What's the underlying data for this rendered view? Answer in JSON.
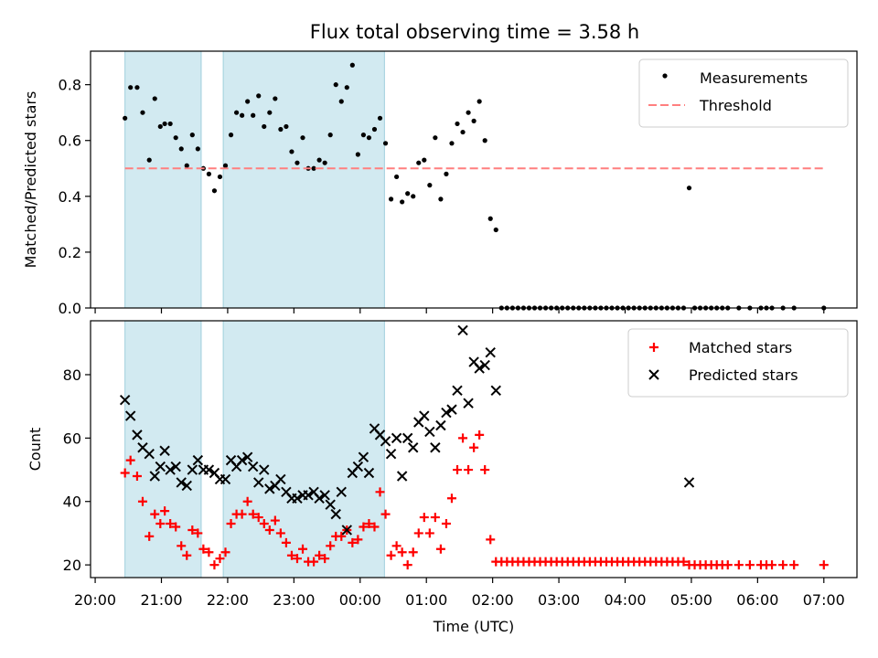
{
  "title": "Flux total observing time = 3.58 h",
  "chart_data": [
    {
      "type": "scatter",
      "ylabel": "Matched/Predicted stars",
      "xlabel": "",
      "ylim": [
        0,
        0.92
      ],
      "yticks": [
        "0.0",
        "0.2",
        "0.4",
        "0.6",
        "0.8"
      ],
      "legend_position": "top-right",
      "shaded_intervals": [
        [
          "20:27",
          "21:36"
        ],
        [
          "21:56",
          "00:22"
        ]
      ],
      "series": [
        {
          "name": "Measurements",
          "marker": "dot",
          "color": "#000000",
          "x": [
            "20:27",
            "20:32",
            "20:38",
            "20:43",
            "20:49",
            "20:54",
            "20:59",
            "21:03",
            "21:08",
            "21:13",
            "21:18",
            "21:23",
            "21:28",
            "21:33",
            "21:38",
            "21:43",
            "21:48",
            "21:53",
            "21:58",
            "22:03",
            "22:08",
            "22:13",
            "22:18",
            "22:23",
            "22:28",
            "22:33",
            "22:38",
            "22:43",
            "22:48",
            "22:53",
            "22:58",
            "23:03",
            "23:08",
            "23:13",
            "23:18",
            "23:23",
            "23:28",
            "23:33",
            "23:38",
            "23:43",
            "23:48",
            "23:53",
            "23:58",
            "00:03",
            "00:08",
            "00:13",
            "00:18",
            "00:23",
            "00:28",
            "00:33",
            "00:38",
            "00:43",
            "00:48",
            "00:53",
            "00:58",
            "01:03",
            "01:08",
            "01:13",
            "01:18",
            "01:23",
            "01:28",
            "01:33",
            "01:38",
            "01:43",
            "01:48",
            "01:53",
            "01:58",
            "02:03",
            "02:08",
            "02:13",
            "02:18",
            "02:23",
            "02:28",
            "02:33",
            "02:38",
            "02:43",
            "02:48",
            "02:53",
            "02:58",
            "03:03",
            "03:08",
            "03:13",
            "03:18",
            "03:23",
            "03:28",
            "03:33",
            "03:38",
            "03:43",
            "03:48",
            "03:53",
            "03:58",
            "04:03",
            "04:08",
            "04:13",
            "04:18",
            "04:23",
            "04:28",
            "04:33",
            "04:38",
            "04:43",
            "04:48",
            "04:53",
            "04:58",
            "05:03",
            "05:08",
            "05:13",
            "05:18",
            "05:23",
            "05:28",
            "05:33",
            "05:43",
            "05:53",
            "06:03",
            "06:08",
            "06:13",
            "06:23",
            "06:33",
            "07:00"
          ],
          "y": [
            0.68,
            0.79,
            0.79,
            0.7,
            0.53,
            0.75,
            0.65,
            0.66,
            0.66,
            0.61,
            0.57,
            0.51,
            0.62,
            0.57,
            0.5,
            0.48,
            0.42,
            0.47,
            0.51,
            0.62,
            0.7,
            0.69,
            0.74,
            0.69,
            0.76,
            0.65,
            0.7,
            0.75,
            0.64,
            0.65,
            0.56,
            0.52,
            0.61,
            0.5,
            0.5,
            0.53,
            0.52,
            0.62,
            0.8,
            0.74,
            0.79,
            0.87,
            0.55,
            0.62,
            0.61,
            0.64,
            0.68,
            0.59,
            0.39,
            0.47,
            0.38,
            0.41,
            0.4,
            0.52,
            0.53,
            0.44,
            0.61,
            0.39,
            0.48,
            0.59,
            0.66,
            0.63,
            0.7,
            0.67,
            0.74,
            0.6,
            0.32,
            0.28,
            0.0,
            0.0,
            0.0,
            0.0,
            0.0,
            0.0,
            0.0,
            0.0,
            0.0,
            0.0,
            0.0,
            0.0,
            0.0,
            0.0,
            0.0,
            0.0,
            0.0,
            0.0,
            0.0,
            0.0,
            0.0,
            0.0,
            0.0,
            0.0,
            0.0,
            0.0,
            0.0,
            0.0,
            0.0,
            0.0,
            0.0,
            0.0,
            0.0,
            0.0,
            0.43,
            0.0,
            0.0,
            0.0,
            0.0,
            0.0,
            0.0,
            0.0,
            0.0,
            0.0,
            0.0,
            0.0,
            0.0,
            0.0,
            0.0,
            0.0
          ]
        },
        {
          "name": "Threshold",
          "marker": "dashed-line",
          "color": "#ff7f7f",
          "x": [
            "20:27",
            "07:00"
          ],
          "y": [
            0.5,
            0.5
          ]
        }
      ]
    },
    {
      "type": "scatter",
      "ylabel": "Count",
      "xlabel": "Time (UTC)",
      "ylim": [
        16,
        97
      ],
      "yticks": [
        "20",
        "40",
        "60",
        "80"
      ],
      "xticks": [
        "20:00",
        "21:00",
        "22:00",
        "23:00",
        "00:00",
        "01:00",
        "02:00",
        "03:00",
        "04:00",
        "05:00",
        "06:00",
        "07:00"
      ],
      "legend_position": "top-right",
      "shaded_intervals": [
        [
          "20:27",
          "21:36"
        ],
        [
          "21:56",
          "00:22"
        ]
      ],
      "series": [
        {
          "name": "Matched stars",
          "marker": "plus",
          "color": "#ff0000",
          "x": [
            "20:27",
            "20:32",
            "20:38",
            "20:43",
            "20:49",
            "20:54",
            "20:59",
            "21:03",
            "21:08",
            "21:13",
            "21:18",
            "21:23",
            "21:28",
            "21:33",
            "21:38",
            "21:43",
            "21:48",
            "21:53",
            "21:58",
            "22:03",
            "22:08",
            "22:13",
            "22:18",
            "22:23",
            "22:28",
            "22:33",
            "22:38",
            "22:43",
            "22:48",
            "22:53",
            "22:58",
            "23:03",
            "23:08",
            "23:13",
            "23:18",
            "23:23",
            "23:28",
            "23:33",
            "23:38",
            "23:43",
            "23:48",
            "23:53",
            "23:58",
            "00:03",
            "00:08",
            "00:13",
            "00:18",
            "00:23",
            "00:28",
            "00:33",
            "00:38",
            "00:43",
            "00:48",
            "00:53",
            "00:58",
            "01:03",
            "01:08",
            "01:13",
            "01:18",
            "01:23",
            "01:28",
            "01:33",
            "01:38",
            "01:43",
            "01:48",
            "01:53",
            "01:58",
            "02:03",
            "02:08",
            "02:13",
            "02:18",
            "02:23",
            "02:28",
            "02:33",
            "02:38",
            "02:43",
            "02:48",
            "02:53",
            "02:58",
            "03:03",
            "03:08",
            "03:13",
            "03:18",
            "03:23",
            "03:28",
            "03:33",
            "03:38",
            "03:43",
            "03:48",
            "03:53",
            "03:58",
            "04:03",
            "04:08",
            "04:13",
            "04:18",
            "04:23",
            "04:28",
            "04:33",
            "04:38",
            "04:43",
            "04:48",
            "04:53",
            "04:58",
            "05:03",
            "05:08",
            "05:13",
            "05:18",
            "05:23",
            "05:28",
            "05:33",
            "05:43",
            "05:53",
            "06:03",
            "06:08",
            "06:13",
            "06:23",
            "06:33",
            "07:00"
          ],
          "y": [
            49,
            53,
            48,
            40,
            29,
            36,
            33,
            37,
            33,
            32,
            26,
            23,
            31,
            30,
            25,
            24,
            20,
            22,
            24,
            33,
            36,
            36,
            40,
            36,
            35,
            33,
            31,
            34,
            30,
            27,
            23,
            22,
            25,
            21,
            21,
            23,
            22,
            26,
            29,
            29,
            31,
            27,
            28,
            32,
            33,
            32,
            43,
            36,
            23,
            26,
            24,
            20,
            24,
            30,
            35,
            30,
            35,
            25,
            33,
            41,
            50,
            60,
            50,
            57,
            61,
            50,
            28,
            21,
            21,
            21,
            21,
            21,
            21,
            21,
            21,
            21,
            21,
            21,
            21,
            21,
            21,
            21,
            21,
            21,
            21,
            21,
            21,
            21,
            21,
            21,
            21,
            21,
            21,
            21,
            21,
            21,
            21,
            21,
            21,
            21,
            21,
            21,
            20,
            20,
            20,
            20,
            20,
            20,
            20,
            20,
            20,
            20,
            20,
            20,
            20,
            20,
            20,
            20
          ]
        },
        {
          "name": "Predicted stars",
          "marker": "x",
          "color": "#000000",
          "x": [
            "20:27",
            "20:32",
            "20:38",
            "20:43",
            "20:49",
            "20:54",
            "20:59",
            "21:03",
            "21:08",
            "21:13",
            "21:18",
            "21:23",
            "21:28",
            "21:33",
            "21:38",
            "21:43",
            "21:48",
            "21:53",
            "21:58",
            "22:03",
            "22:08",
            "22:13",
            "22:18",
            "22:23",
            "22:28",
            "22:33",
            "22:38",
            "22:43",
            "22:48",
            "22:53",
            "22:58",
            "23:03",
            "23:08",
            "23:13",
            "23:18",
            "23:23",
            "23:28",
            "23:33",
            "23:38",
            "23:43",
            "23:48",
            "23:53",
            "23:58",
            "00:03",
            "00:08",
            "00:13",
            "00:18",
            "00:23",
            "00:28",
            "00:33",
            "00:38",
            "00:43",
            "00:48",
            "00:53",
            "00:58",
            "01:03",
            "01:08",
            "01:13",
            "01:18",
            "01:23",
            "01:28",
            "01:33",
            "01:38",
            "01:43",
            "01:48",
            "01:53",
            "01:58",
            "02:03",
            "04:58"
          ],
          "y": [
            72,
            67,
            61,
            57,
            55,
            48,
            51,
            56,
            50,
            51,
            46,
            45,
            50,
            53,
            50,
            50,
            49,
            47,
            47,
            53,
            51,
            53,
            54,
            51,
            46,
            50,
            44,
            45,
            47,
            43,
            41,
            41,
            42,
            42,
            43,
            41,
            42,
            39,
            36,
            43,
            31,
            49,
            51,
            54,
            49,
            63,
            61,
            59,
            55,
            60,
            48,
            60,
            57,
            65,
            67,
            62,
            57,
            64,
            68,
            69,
            75,
            94,
            71,
            84,
            82,
            83,
            87,
            75,
            46
          ]
        }
      ]
    }
  ]
}
